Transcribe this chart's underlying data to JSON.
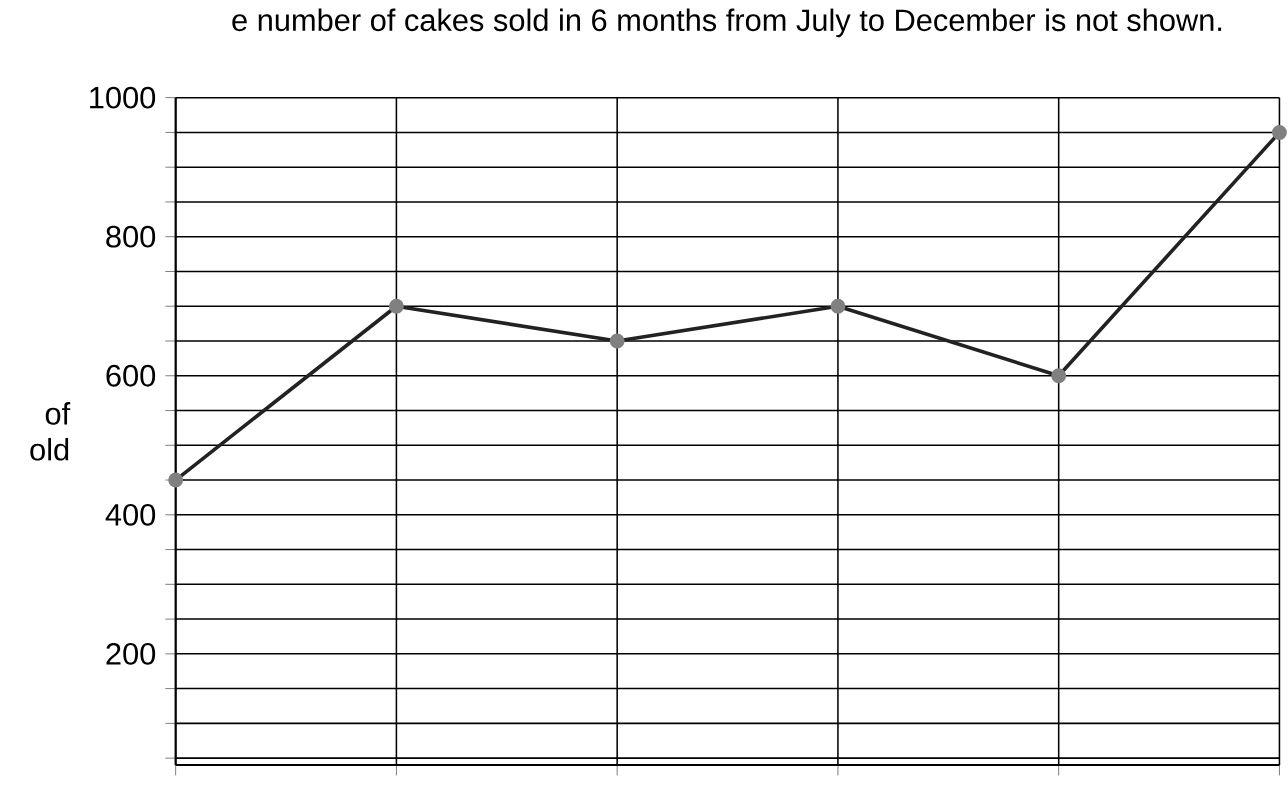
{
  "chart_data": {
    "type": "line",
    "title": "e number of cakes sold in 6 months from July to December is not shown.",
    "ylabel": "of old",
    "categories": [
      null,
      null,
      null,
      null,
      null,
      null
    ],
    "series": [
      {
        "color": "#222222",
        "values": [
          450,
          700,
          650,
          700,
          600,
          950
        ]
      }
    ],
    "ylim": [
      40,
      1000
    ],
    "yticks": [
      {
        "value": 50,
        "label": null
      },
      {
        "value": 100,
        "label": null
      },
      {
        "value": 150,
        "label": null
      },
      200,
      {
        "value": 250,
        "label": null
      },
      {
        "value": 300,
        "label": null
      },
      {
        "value": 350,
        "label": null
      },
      400,
      {
        "value": 450,
        "label": null
      },
      {
        "value": 500,
        "label": null
      },
      {
        "value": 550,
        "label": null
      },
      600,
      {
        "value": 650,
        "label": null
      },
      {
        "value": 700,
        "label": null
      },
      {
        "value": 750,
        "label": null
      },
      800,
      {
        "value": 850,
        "label": null
      },
      {
        "value": 900,
        "label": null
      },
      {
        "value": 950,
        "label": null
      },
      1000
    ],
    "grid": true,
    "marker": "circle",
    "line_style": "solid",
    "tick_labels": "y"
  }
}
